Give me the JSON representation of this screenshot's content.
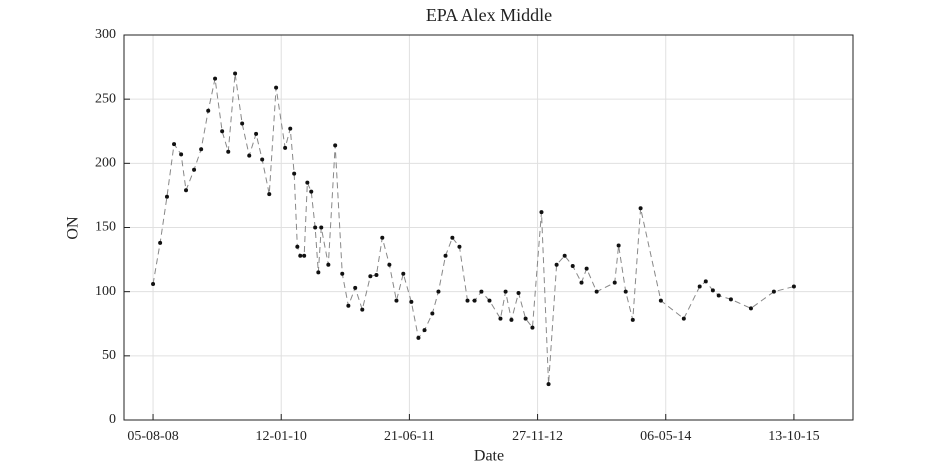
{
  "chart_data": {
    "type": "line",
    "title": "EPA Alex Middle",
    "x_label": "Date",
    "y_label": "ON",
    "x": [
      "2008-08-05",
      "2008-09-03",
      "2008-10-01",
      "2008-10-30",
      "2008-11-28",
      "2008-12-18",
      "2009-01-20",
      "2009-02-18",
      "2009-03-19",
      "2009-04-16",
      "2009-05-15",
      "2009-06-09",
      "2009-07-07",
      "2009-08-05",
      "2009-09-03",
      "2009-10-01",
      "2009-10-26",
      "2009-11-24",
      "2009-12-22",
      "2010-01-28",
      "2010-02-18",
      "2010-03-06",
      "2010-03-19",
      "2010-03-31",
      "2010-04-16",
      "2010-04-29",
      "2010-05-15",
      "2010-05-31",
      "2010-06-13",
      "2010-06-25",
      "2010-07-24",
      "2010-08-21",
      "2010-09-19",
      "2010-10-14",
      "2010-11-11",
      "2010-12-10",
      "2011-01-12",
      "2011-02-06",
      "2011-03-02",
      "2011-03-31",
      "2011-04-29",
      "2011-05-27",
      "2011-06-29",
      "2011-07-28",
      "2011-08-22",
      "2011-09-23",
      "2011-10-18",
      "2011-11-16",
      "2011-12-14",
      "2012-01-12",
      "2012-02-14",
      "2012-03-14",
      "2012-04-11",
      "2012-05-14",
      "2012-06-28",
      "2012-07-19",
      "2012-08-12",
      "2012-09-10",
      "2012-10-09",
      "2012-11-06",
      "2012-12-13",
      "2013-01-11",
      "2013-02-13",
      "2013-03-18",
      "2013-04-20",
      "2013-05-26",
      "2013-06-16",
      "2013-07-27",
      "2013-10-09",
      "2013-10-25",
      "2013-11-23",
      "2013-12-22",
      "2014-01-23",
      "2014-04-16",
      "2014-07-19",
      "2014-09-22",
      "2014-10-17",
      "2014-11-15",
      "2014-12-09",
      "2015-01-28",
      "2015-04-20",
      "2015-07-23",
      "2015-10-13"
    ],
    "series": [
      {
        "name": "ON",
        "color": "#888888",
        "marker_color": "#111111",
        "values": [
          106,
          138,
          174,
          215,
          207,
          179,
          195,
          211,
          241,
          266,
          225,
          209,
          270,
          231,
          206,
          223,
          203,
          176,
          259,
          212,
          227,
          192,
          135,
          128,
          128,
          185,
          178,
          150,
          115,
          150,
          121,
          214,
          114,
          89,
          103,
          86,
          112,
          113,
          142,
          121,
          93,
          114,
          92,
          64,
          70,
          83,
          100,
          128,
          142,
          135,
          93,
          93,
          100,
          93,
          79,
          100,
          78,
          99,
          79,
          72,
          162,
          28,
          121,
          128,
          120,
          107,
          118,
          100,
          107,
          136,
          100,
          78,
          165,
          93,
          79,
          104,
          108,
          101,
          97,
          94,
          87,
          100,
          104
        ]
      }
    ],
    "xlim": [
      "2008-04-08",
      "2016-06-11"
    ],
    "xticks": [
      {
        "value": "2008-08-05",
        "label": "05-08-08"
      },
      {
        "value": "2010-01-12",
        "label": "12-01-10"
      },
      {
        "value": "2011-06-21",
        "label": "21-06-11"
      },
      {
        "value": "2012-11-27",
        "label": "27-11-12"
      },
      {
        "value": "2014-05-06",
        "label": "06-05-14"
      },
      {
        "value": "2015-10-13",
        "label": "13-10-15"
      }
    ],
    "ylim": [
      0,
      300
    ],
    "yticks": [
      0,
      50,
      100,
      150,
      200,
      250,
      300
    ],
    "grid": true
  }
}
